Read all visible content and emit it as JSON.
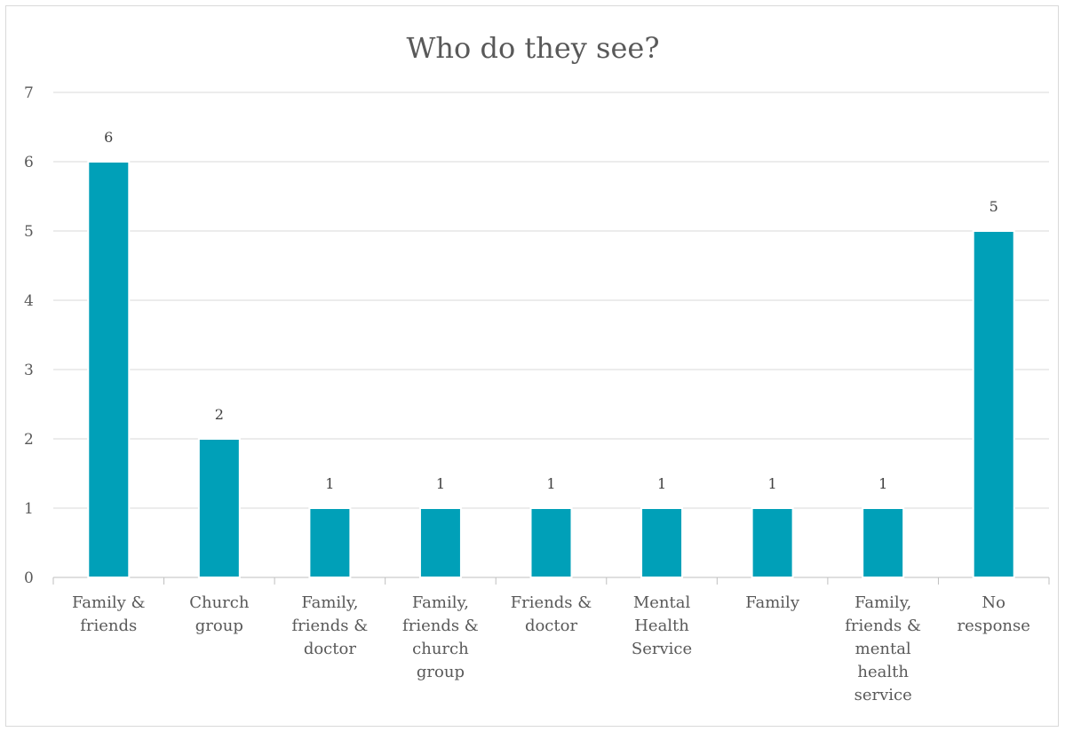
{
  "chart_data": {
    "type": "bar",
    "title": "Who do they see?",
    "xlabel": "",
    "ylabel": "",
    "ylim": [
      0,
      7
    ],
    "yticks": [
      "0",
      "1",
      "2",
      "3",
      "4",
      "5",
      "6",
      "7"
    ],
    "grid": true,
    "legend": "none",
    "bar_color": "#00a0b8",
    "categories": [
      [
        "Family &",
        "friends"
      ],
      [
        "Church",
        "group"
      ],
      [
        "Family,",
        "friends &",
        "doctor"
      ],
      [
        "Family,",
        "friends &",
        "church",
        "group"
      ],
      [
        "Friends &",
        "doctor"
      ],
      [
        "Mental",
        "Health",
        "Service"
      ],
      [
        "Family"
      ],
      [
        "Family,",
        "friends &",
        "mental",
        "health",
        "service"
      ],
      [
        "No",
        "response"
      ]
    ],
    "values": [
      6,
      2,
      1,
      1,
      1,
      1,
      1,
      1,
      5
    ],
    "data_labels": [
      "6",
      "2",
      "1",
      "1",
      "1",
      "1",
      "1",
      "1",
      "5"
    ]
  }
}
